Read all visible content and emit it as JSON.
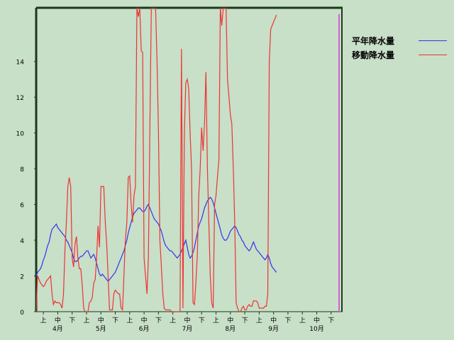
{
  "chart_data": {
    "type": "line",
    "ylim": [
      0,
      17
    ],
    "yticks": [
      0,
      2,
      4,
      6,
      8,
      10,
      12,
      14
    ],
    "xlim": [
      0,
      213
    ],
    "period_labels": [
      "上",
      "中",
      "下"
    ],
    "months": [
      "4月",
      "5月",
      "6月",
      "7月",
      "8月",
      "9月",
      "10月"
    ],
    "series": [
      {
        "name": "平年降水量",
        "color": "#3333ee",
        "points": [
          [
            0,
            2.0
          ],
          [
            1,
            2.2
          ],
          [
            2,
            2.3
          ],
          [
            3,
            2.4
          ],
          [
            4,
            2.6
          ],
          [
            5,
            2.9
          ],
          [
            6,
            3.1
          ],
          [
            7,
            3.4
          ],
          [
            8,
            3.7
          ],
          [
            9,
            3.9
          ],
          [
            10,
            4.3
          ],
          [
            11,
            4.6
          ],
          [
            12,
            4.7
          ],
          [
            13,
            4.8
          ],
          [
            14,
            4.9
          ],
          [
            15,
            4.7
          ],
          [
            16,
            4.6
          ],
          [
            17,
            4.5
          ],
          [
            18,
            4.4
          ],
          [
            19,
            4.3
          ],
          [
            20,
            4.2
          ],
          [
            21,
            4.0
          ],
          [
            22,
            3.9
          ],
          [
            23,
            3.7
          ],
          [
            24,
            3.5
          ],
          [
            25,
            3.3
          ],
          [
            26,
            3.0
          ],
          [
            27,
            2.8
          ],
          [
            28,
            2.8
          ],
          [
            29,
            2.9
          ],
          [
            30,
            3.0
          ],
          [
            31,
            3.1
          ],
          [
            32,
            3.1
          ],
          [
            33,
            3.2
          ],
          [
            34,
            3.3
          ],
          [
            35,
            3.4
          ],
          [
            36,
            3.4
          ],
          [
            37,
            3.2
          ],
          [
            38,
            3.0
          ],
          [
            39,
            3.1
          ],
          [
            40,
            3.2
          ],
          [
            41,
            3.0
          ],
          [
            42,
            2.7
          ],
          [
            43,
            2.4
          ],
          [
            44,
            2.1
          ],
          [
            45,
            2.0
          ],
          [
            46,
            2.1
          ],
          [
            47,
            2.0
          ],
          [
            48,
            1.9
          ],
          [
            49,
            1.8
          ],
          [
            50,
            1.7
          ],
          [
            51,
            1.8
          ],
          [
            52,
            1.9
          ],
          [
            53,
            2.0
          ],
          [
            54,
            2.1
          ],
          [
            55,
            2.2
          ],
          [
            56,
            2.4
          ],
          [
            57,
            2.6
          ],
          [
            58,
            2.8
          ],
          [
            59,
            3.0
          ],
          [
            60,
            3.2
          ],
          [
            61,
            3.4
          ],
          [
            62,
            3.7
          ],
          [
            63,
            4.0
          ],
          [
            64,
            4.4
          ],
          [
            65,
            4.7
          ],
          [
            66,
            5.0
          ],
          [
            67,
            5.3
          ],
          [
            68,
            5.5
          ],
          [
            69,
            5.6
          ],
          [
            70,
            5.7
          ],
          [
            71,
            5.8
          ],
          [
            72,
            5.8
          ],
          [
            73,
            5.7
          ],
          [
            74,
            5.6
          ],
          [
            75,
            5.6
          ],
          [
            76,
            5.7
          ],
          [
            77,
            5.9
          ],
          [
            78,
            6.0
          ],
          [
            79,
            5.8
          ],
          [
            80,
            5.6
          ],
          [
            81,
            5.4
          ],
          [
            82,
            5.2
          ],
          [
            83,
            5.1
          ],
          [
            84,
            5.0
          ],
          [
            85,
            4.9
          ],
          [
            86,
            4.7
          ],
          [
            87,
            4.5
          ],
          [
            88,
            4.2
          ],
          [
            89,
            3.9
          ],
          [
            90,
            3.7
          ],
          [
            91,
            3.6
          ],
          [
            92,
            3.5
          ],
          [
            93,
            3.4
          ],
          [
            94,
            3.4
          ],
          [
            95,
            3.3
          ],
          [
            96,
            3.2
          ],
          [
            97,
            3.1
          ],
          [
            98,
            3.0
          ],
          [
            99,
            3.1
          ],
          [
            100,
            3.2
          ],
          [
            101,
            3.4
          ],
          [
            102,
            3.6
          ],
          [
            103,
            3.8
          ],
          [
            104,
            4.0
          ],
          [
            105,
            3.6
          ],
          [
            106,
            3.2
          ],
          [
            107,
            3.0
          ],
          [
            108,
            3.1
          ],
          [
            109,
            3.3
          ],
          [
            110,
            3.6
          ],
          [
            111,
            4.0
          ],
          [
            112,
            4.4
          ],
          [
            113,
            4.8
          ],
          [
            114,
            5.0
          ],
          [
            115,
            5.2
          ],
          [
            116,
            5.5
          ],
          [
            117,
            5.8
          ],
          [
            118,
            6.0
          ],
          [
            119,
            6.2
          ],
          [
            120,
            6.3
          ],
          [
            121,
            6.4
          ],
          [
            122,
            6.3
          ],
          [
            123,
            6.1
          ],
          [
            124,
            5.8
          ],
          [
            125,
            5.5
          ],
          [
            126,
            5.2
          ],
          [
            127,
            4.9
          ],
          [
            128,
            4.6
          ],
          [
            129,
            4.3
          ],
          [
            130,
            4.1
          ],
          [
            131,
            4.0
          ],
          [
            132,
            4.0
          ],
          [
            133,
            4.1
          ],
          [
            134,
            4.3
          ],
          [
            135,
            4.5
          ],
          [
            136,
            4.6
          ],
          [
            137,
            4.7
          ],
          [
            138,
            4.8
          ],
          [
            139,
            4.7
          ],
          [
            140,
            4.5
          ],
          [
            141,
            4.3
          ],
          [
            142,
            4.2
          ],
          [
            143,
            4.0
          ],
          [
            144,
            3.9
          ],
          [
            145,
            3.7
          ],
          [
            146,
            3.6
          ],
          [
            147,
            3.5
          ],
          [
            148,
            3.4
          ],
          [
            149,
            3.5
          ],
          [
            150,
            3.7
          ],
          [
            151,
            3.9
          ],
          [
            152,
            3.7
          ],
          [
            153,
            3.5
          ],
          [
            154,
            3.4
          ],
          [
            155,
            3.3
          ],
          [
            156,
            3.2
          ],
          [
            157,
            3.1
          ],
          [
            158,
            3.0
          ],
          [
            159,
            2.9
          ],
          [
            160,
            3.0
          ],
          [
            161,
            3.2
          ],
          [
            162,
            3.0
          ],
          [
            163,
            2.7
          ],
          [
            164,
            2.5
          ],
          [
            165,
            2.4
          ],
          [
            166,
            2.3
          ],
          [
            167,
            2.2
          ]
        ]
      },
      {
        "name": "移動降水量",
        "color": "#ee3333",
        "points": [
          [
            0,
            0
          ],
          [
            1,
            2.0
          ],
          [
            2,
            1.8
          ],
          [
            3,
            1.6
          ],
          [
            4,
            1.5
          ],
          [
            5,
            1.4
          ],
          [
            6,
            1.5
          ],
          [
            7,
            1.7
          ],
          [
            8,
            1.8
          ],
          [
            9,
            1.9
          ],
          [
            10,
            2.0
          ],
          [
            11,
            1.0
          ],
          [
            12,
            0.4
          ],
          [
            13,
            0.6
          ],
          [
            14,
            0.5
          ],
          [
            15,
            0.5
          ],
          [
            16,
            0.5
          ],
          [
            17,
            0.4
          ],
          [
            18,
            0.2
          ],
          [
            19,
            1.0
          ],
          [
            20,
            3.5
          ],
          [
            21,
            5.0
          ],
          [
            22,
            7.0
          ],
          [
            23,
            7.5
          ],
          [
            24,
            7.0
          ],
          [
            25,
            3.0
          ],
          [
            26,
            2.5
          ],
          [
            27,
            3.8
          ],
          [
            28,
            4.2
          ],
          [
            29,
            3.0
          ],
          [
            30,
            2.4
          ],
          [
            31,
            2.4
          ],
          [
            32,
            1.5
          ],
          [
            33,
            0.2
          ],
          [
            34,
            0
          ],
          [
            35,
            0
          ],
          [
            36,
            0
          ],
          [
            37,
            0.5
          ],
          [
            38,
            0.6
          ],
          [
            39,
            0.8
          ],
          [
            40,
            1.6
          ],
          [
            41,
            1.8
          ],
          [
            42,
            3.0
          ],
          [
            43,
            4.8
          ],
          [
            44,
            3.6
          ],
          [
            45,
            7.0
          ],
          [
            46,
            7.0
          ],
          [
            47,
            7.0
          ],
          [
            48,
            5.0
          ],
          [
            49,
            3.8
          ],
          [
            50,
            2.0
          ],
          [
            51,
            0.1
          ],
          [
            52,
            0.1
          ],
          [
            53,
            0.1
          ],
          [
            54,
            1.0
          ],
          [
            55,
            1.2
          ],
          [
            56,
            1.1
          ],
          [
            57,
            1.0
          ],
          [
            58,
            1.0
          ],
          [
            59,
            0.2
          ],
          [
            60,
            0.1
          ],
          [
            61,
            2.0
          ],
          [
            62,
            4.0
          ],
          [
            63,
            5.0
          ],
          [
            64,
            7.5
          ],
          [
            65,
            7.6
          ],
          [
            66,
            6.0
          ],
          [
            67,
            5.0
          ],
          [
            68,
            6.5
          ],
          [
            69,
            7.0
          ],
          [
            70,
            17.0
          ],
          [
            71,
            16.5
          ],
          [
            72,
            17.0
          ],
          [
            73,
            14.6
          ],
          [
            74,
            14.5
          ],
          [
            75,
            3.0
          ],
          [
            76,
            2.0
          ],
          [
            77,
            1.0
          ],
          [
            78,
            3.0
          ],
          [
            79,
            10.0
          ],
          [
            80,
            17.0
          ],
          [
            81,
            17.0
          ],
          [
            82,
            17.0
          ],
          [
            83,
            17.0
          ],
          [
            84,
            14.0
          ],
          [
            85,
            10.0
          ],
          [
            86,
            4.0
          ],
          [
            87,
            2.5
          ],
          [
            88,
            1.0
          ],
          [
            89,
            0.2
          ],
          [
            90,
            0.1
          ],
          [
            91,
            0.1
          ],
          [
            92,
            0.1
          ],
          [
            93,
            0.1
          ],
          [
            94,
            0
          ],
          [
            95,
            0
          ],
          [
            96,
            0
          ],
          [
            97,
            0
          ],
          [
            98,
            0
          ],
          [
            99,
            0
          ],
          [
            100,
            0
          ],
          [
            101,
            14.7
          ],
          [
            102,
            0.2
          ],
          [
            103,
            10.0
          ],
          [
            104,
            12.8
          ],
          [
            105,
            13.0
          ],
          [
            106,
            12.5
          ],
          [
            107,
            10.0
          ],
          [
            108,
            8.0
          ],
          [
            109,
            0.5
          ],
          [
            110,
            0.4
          ],
          [
            111,
            1.6
          ],
          [
            112,
            3.2
          ],
          [
            113,
            6.5
          ],
          [
            114,
            8.0
          ],
          [
            115,
            10.3
          ],
          [
            116,
            9.0
          ],
          [
            117,
            10.5
          ],
          [
            118,
            13.4
          ],
          [
            119,
            8.0
          ],
          [
            120,
            5.0
          ],
          [
            121,
            2.0
          ],
          [
            122,
            0.5
          ],
          [
            123,
            0.2
          ],
          [
            124,
            6.0
          ],
          [
            125,
            6.5
          ],
          [
            126,
            7.5
          ],
          [
            127,
            8.5
          ],
          [
            128,
            17.0
          ],
          [
            129,
            16.0
          ],
          [
            130,
            17.0
          ],
          [
            131,
            17.0
          ],
          [
            132,
            17.0
          ],
          [
            133,
            13.0
          ],
          [
            134,
            12.0
          ],
          [
            135,
            11.0
          ],
          [
            136,
            10.5
          ],
          [
            137,
            8.0
          ],
          [
            138,
            5.0
          ],
          [
            139,
            0.5
          ],
          [
            140,
            0.2
          ],
          [
            141,
            0
          ],
          [
            142,
            0
          ],
          [
            143,
            0.2
          ],
          [
            144,
            0.3
          ],
          [
            145,
            0.1
          ],
          [
            146,
            0.1
          ],
          [
            147,
            0.3
          ],
          [
            148,
            0.4
          ],
          [
            149,
            0.3
          ],
          [
            150,
            0.3
          ],
          [
            151,
            0.6
          ],
          [
            152,
            0.6
          ],
          [
            153,
            0.6
          ],
          [
            154,
            0.5
          ],
          [
            155,
            0.2
          ],
          [
            156,
            0.2
          ],
          [
            157,
            0.2
          ],
          [
            158,
            0.2
          ],
          [
            159,
            0.3
          ],
          [
            160,
            0.3
          ],
          [
            161,
            1.0
          ],
          [
            162,
            14.0
          ],
          [
            163,
            15.8
          ],
          [
            164,
            16.0
          ],
          [
            165,
            16.2
          ],
          [
            166,
            16.4
          ],
          [
            167,
            16.6
          ]
        ]
      }
    ]
  }
}
